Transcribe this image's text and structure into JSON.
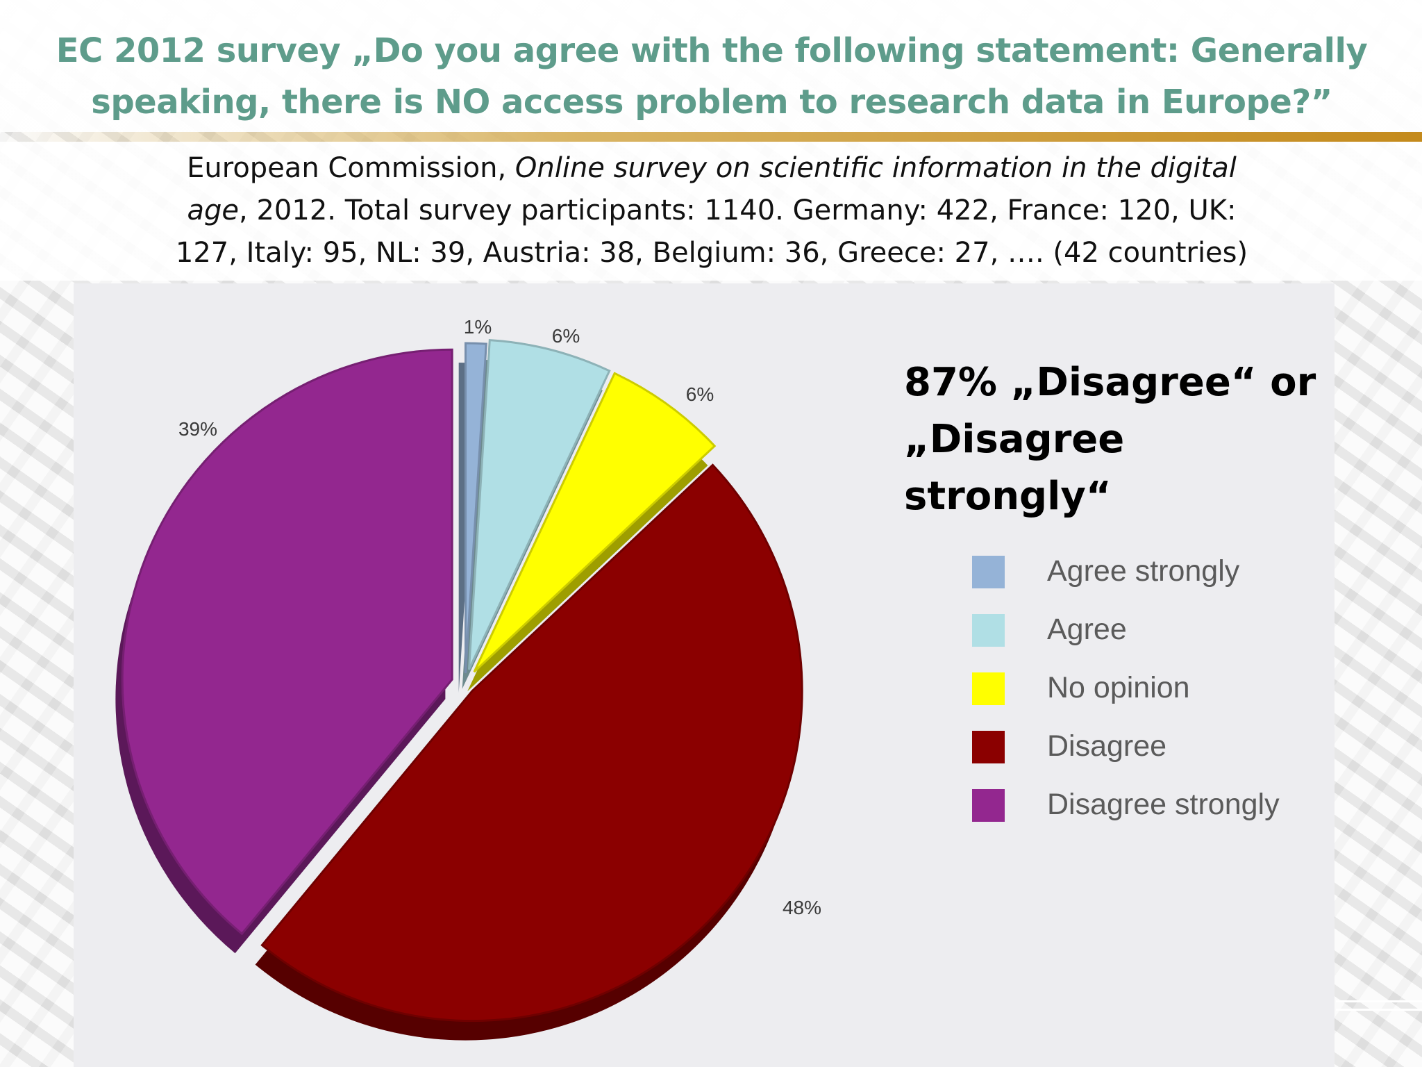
{
  "slide": {
    "title": "EC 2012 survey „Do you agree with the following statement: Generally speaking, there is NO access problem to research data in Europe?”",
    "source_prefix": "European Commission, ",
    "source_italic": "Online survey on scientific information in the digital age",
    "source_suffix": ", 2012. Total survey participants: 1140. Germany: 422, France: 120, UK: 127, Italy: 95, NL: 39, Austria: 38, Belgium: 36, Greece: 27, …. (42 countries)",
    "callout_line1": "87% „Disagree“ or",
    "callout_line2": "„Disagree strongly“"
  },
  "chart_data": {
    "type": "pie",
    "title": "",
    "slices": [
      {
        "label": "Agree strongly",
        "value": 1,
        "display": "1%",
        "color": "#95b3d7"
      },
      {
        "label": "Agree",
        "value": 6,
        "display": "6%",
        "color": "#b0dfe5"
      },
      {
        "label": "No opinion",
        "value": 6,
        "display": "6%",
        "color": "#ffff00"
      },
      {
        "label": "Disagree",
        "value": 48,
        "display": "48%",
        "color": "#8b0000"
      },
      {
        "label": "Disagree strongly",
        "value": 39,
        "display": "39%",
        "color": "#93278f"
      }
    ],
    "legend_position": "right",
    "style": "3d-exploded"
  }
}
